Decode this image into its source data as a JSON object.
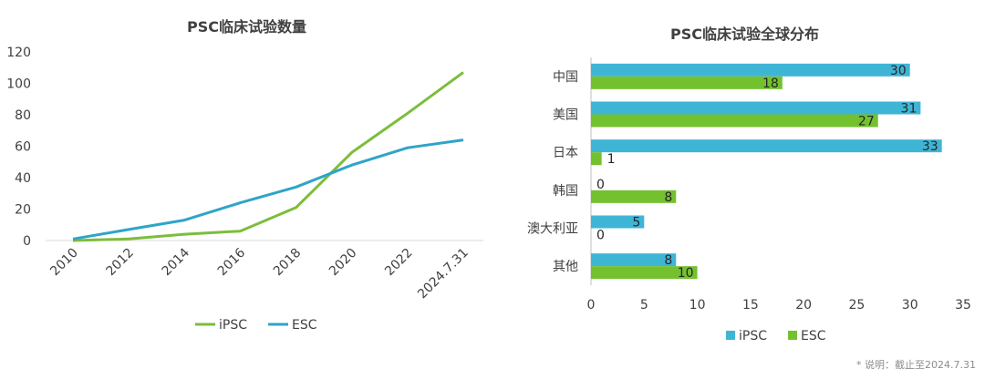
{
  "chart_data": [
    {
      "type": "line",
      "title": "PSC临床试验数量",
      "x": [
        "2010",
        "2012",
        "2014",
        "2016",
        "2018",
        "2020",
        "2022",
        "2024.7.31"
      ],
      "ylim": [
        0,
        120
      ],
      "yticks": [
        0,
        20,
        40,
        60,
        80,
        100,
        120
      ],
      "grid": false,
      "legend": "bottom",
      "series": [
        {
          "name": "iPSC",
          "color": "#7cbd3b",
          "values": [
            0,
            1,
            4,
            6,
            21,
            56,
            81,
            107
          ]
        },
        {
          "name": "ESC",
          "color": "#2fa4c8",
          "values": [
            1,
            7,
            13,
            24,
            34,
            48,
            59,
            64
          ]
        }
      ]
    },
    {
      "type": "bar",
      "orientation": "horizontal",
      "title": "PSC临床试验全球分布",
      "categories": [
        "中国",
        "美国",
        "日本",
        "韩国",
        "澳大利亚",
        "其他"
      ],
      "xlim": [
        0,
        35
      ],
      "xticks": [
        0,
        5,
        10,
        15,
        20,
        25,
        30,
        35
      ],
      "grid": false,
      "legend": "bottom",
      "series": [
        {
          "name": "iPSC",
          "color": "#3fb5d6",
          "values": [
            30,
            31,
            33,
            0,
            5,
            8
          ]
        },
        {
          "name": "ESC",
          "color": "#74c12f",
          "values": [
            18,
            27,
            1,
            8,
            0,
            10
          ]
        }
      ]
    }
  ],
  "footnote": "* 说明：截止至2024.7.31"
}
